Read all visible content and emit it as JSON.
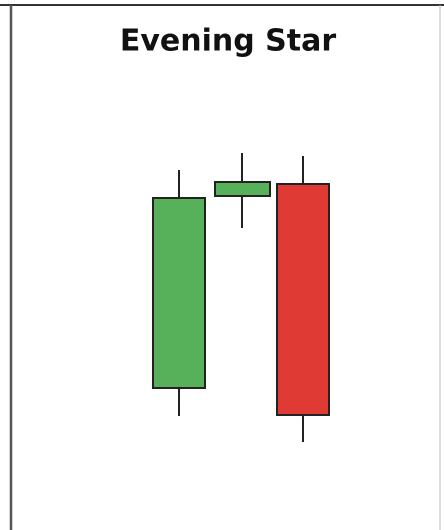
{
  "header": {
    "title": "Evening Star"
  }
}
